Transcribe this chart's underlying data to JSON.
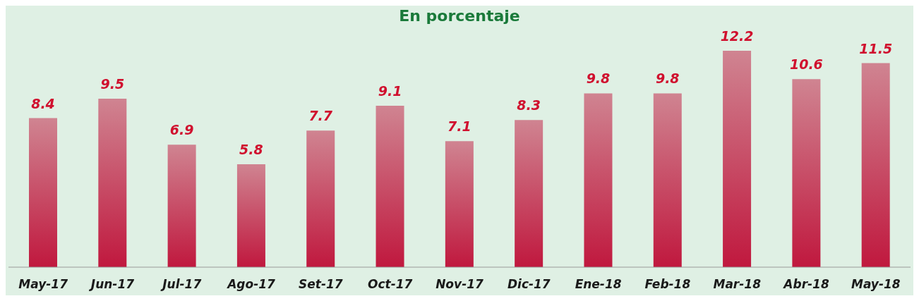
{
  "chart_data": {
    "type": "bar",
    "title": "En porcentaje",
    "categories": [
      "May-17",
      "Jun-17",
      "Jul-17",
      "Ago-17",
      "Set-17",
      "Oct-17",
      "Nov-17",
      "Dic-17",
      "Ene-18",
      "Feb-18",
      "Mar-18",
      "Abr-18",
      "May-18"
    ],
    "values": [
      8.4,
      9.5,
      6.9,
      5.8,
      7.7,
      9.1,
      7.1,
      8.3,
      9.8,
      9.8,
      12.2,
      10.6,
      11.5
    ],
    "color": "#c0183e",
    "data_labels": true,
    "grid": false,
    "legend": false
  }
}
